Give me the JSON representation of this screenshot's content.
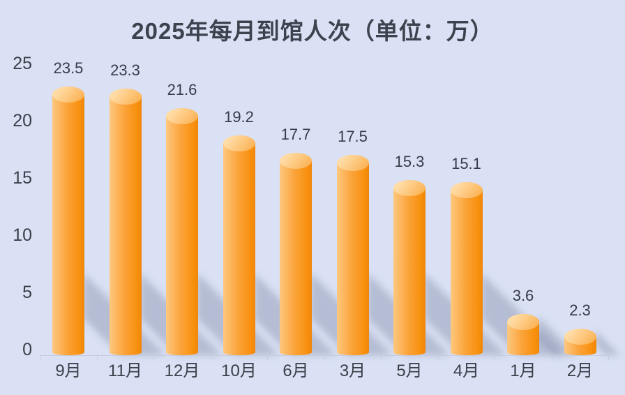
{
  "title": "2025年每月到馆人次（单位：万）",
  "chart_data": {
    "type": "bar",
    "title": "2025年每月到馆人次（单位：万）",
    "categories": [
      "9月",
      "11月",
      "12月",
      "10月",
      "6月",
      "3月",
      "5月",
      "4月",
      "1月",
      "2月"
    ],
    "values": [
      23.5,
      23.3,
      21.6,
      19.2,
      17.7,
      17.5,
      15.3,
      15.1,
      3.6,
      2.3
    ],
    "value_labels": [
      "23.5",
      "23.3",
      "21.6",
      "19.2",
      "17.7",
      "17.5",
      "15.3",
      "15.1",
      "3.6",
      "2.3"
    ],
    "xlabel": "",
    "ylabel": "",
    "unit": "万",
    "ylim": [
      0,
      25
    ],
    "yticks": [
      0,
      5,
      10,
      15,
      20,
      25
    ],
    "grid": false,
    "legend_position": "none",
    "bar_style": "3d-cylinder-with-floor-shadow",
    "sort_order": "descending"
  },
  "colors": {
    "background": "#dae1f4",
    "bar_light": "#fdc87f",
    "bar_mid": "#fba43c",
    "bar_dark": "#f8900d",
    "bar_top_light": "#ffdca6",
    "bar_top_dark": "#fbaf4e",
    "shadow": "rgba(96,106,140,0.30)",
    "axis_line": "#c6ccdd",
    "text": "#3a4049",
    "title_text": "#3d434e"
  }
}
